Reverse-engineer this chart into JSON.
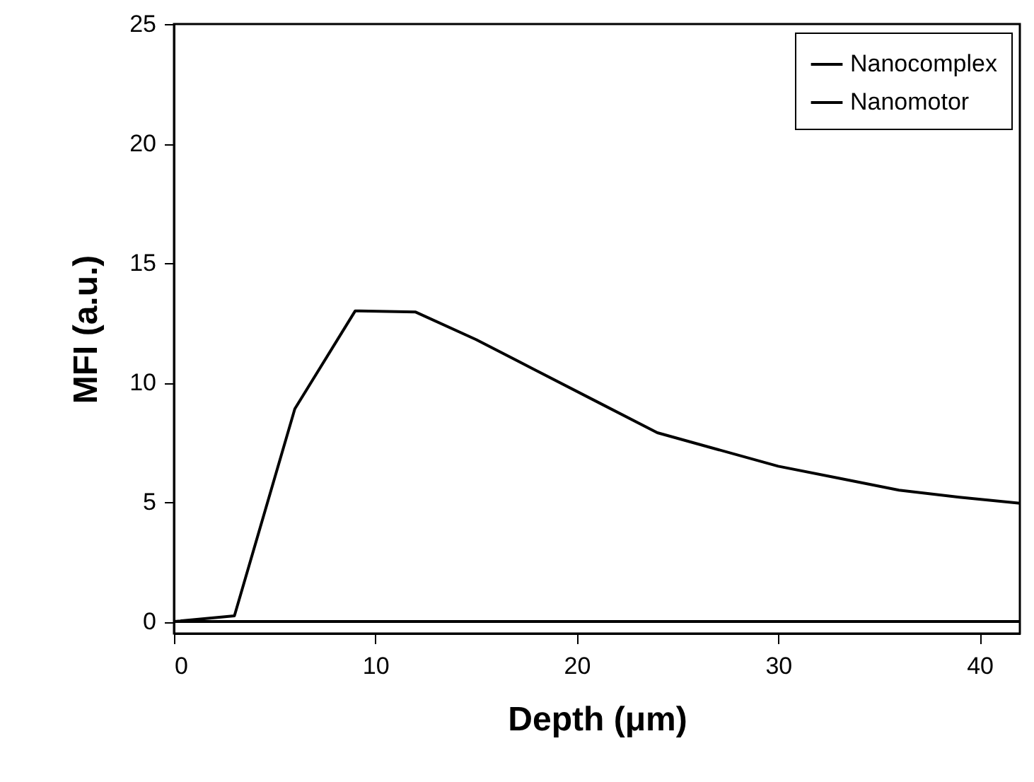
{
  "chart_data": {
    "type": "line",
    "xlabel": "Depth (μm)",
    "ylabel": "MFI (a.u.)",
    "x": [
      0,
      3,
      6,
      9,
      12,
      15,
      18,
      21,
      24,
      27,
      30,
      33,
      36,
      39,
      42
    ],
    "series": [
      {
        "name": "Nanocomplex",
        "color": "#000000",
        "values": [
          0,
          0,
          0,
          0,
          0,
          0,
          0,
          0,
          0,
          0,
          0,
          0,
          0,
          0,
          0
        ]
      },
      {
        "name": "Nanomotor",
        "color": "#000000",
        "values": [
          0,
          0.24,
          8.9,
          13.0,
          12.95,
          11.8,
          10.5,
          9.2,
          7.9,
          7.2,
          6.5,
          6.0,
          5.5,
          5.2,
          4.95
        ]
      }
    ],
    "xlim": [
      0,
      42
    ],
    "xticks": [
      0,
      10,
      20,
      30,
      40
    ],
    "ylim": [
      -0.5,
      25
    ],
    "yticks": [
      0,
      5,
      10,
      15,
      20,
      25
    ],
    "legend": "top right",
    "grid": false,
    "marker": "none",
    "line_style": "solid"
  }
}
